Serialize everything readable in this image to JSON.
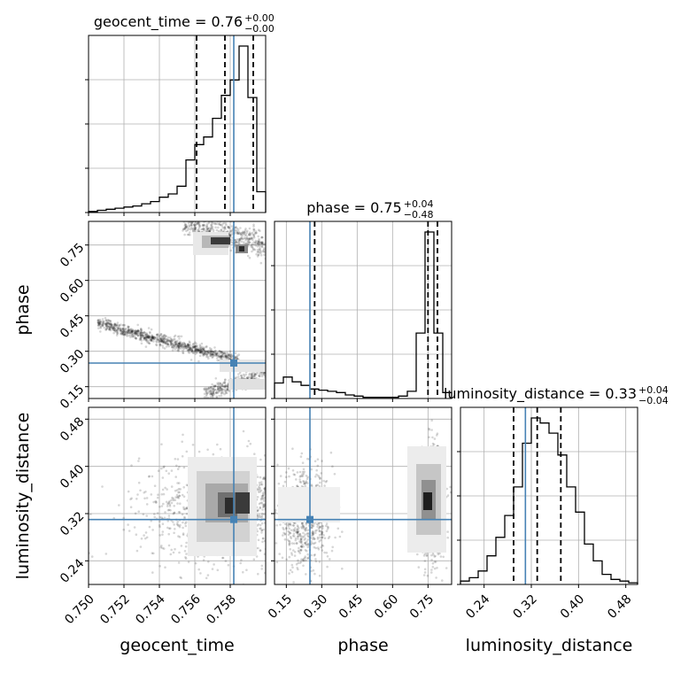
{
  "chart_data": {
    "type": "corner",
    "parameters": [
      "geocent_time",
      "phase",
      "luminosity_distance"
    ],
    "truth_color": "#4682b4",
    "truths": {
      "geocent_time": 0.7582,
      "phase": 0.25,
      "luminosity_distance": 0.31
    },
    "ranges": {
      "geocent_time": [
        0.75,
        0.76
      ],
      "phase": [
        0.1,
        0.85
      ],
      "luminosity_distance": [
        0.2,
        0.5
      ]
    },
    "ticks": {
      "geocent_time": [
        "0.750",
        "0.752",
        "0.754",
        "0.756",
        "0.758"
      ],
      "phase": [
        "0.15",
        "0.30",
        "0.45",
        "0.60",
        "0.75"
      ],
      "luminosity_distance": [
        "0.24",
        "0.32",
        "0.40",
        "0.48"
      ]
    },
    "titles": [
      {
        "param": "geocent_time",
        "label": "geocent_time = 0.76",
        "plus": "+0.00",
        "minus": "−0.00"
      },
      {
        "param": "phase",
        "label": "phase = 0.75",
        "plus": "+0.04",
        "minus": "−0.48"
      },
      {
        "param": "luminosity_distance",
        "label": "luminosity_distance = 0.33",
        "plus": "+0.04",
        "minus": "−0.04"
      }
    ],
    "quantiles": {
      "geocent_time": [
        0.7561,
        0.7577,
        0.7593
      ],
      "phase": [
        0.27,
        0.75,
        0.79
      ],
      "luminosity_distance": [
        0.29,
        0.33,
        0.37
      ]
    },
    "histograms": {
      "geocent_time": {
        "bins": [
          0.75,
          0.7505,
          0.751,
          0.7515,
          0.752,
          0.7525,
          0.753,
          0.7535,
          0.754,
          0.7545,
          0.755,
          0.7555,
          0.756,
          0.7565,
          0.757,
          0.7575,
          0.758,
          0.7585,
          0.759,
          0.7595,
          0.76
        ],
        "counts": [
          1,
          2,
          3,
          4,
          5,
          6,
          8,
          10,
          14,
          17,
          24,
          48,
          62,
          69,
          86,
          107,
          121,
          152,
          105,
          19
        ]
      },
      "phase": {
        "bins": [
          0.1,
          0.1375,
          0.175,
          0.2125,
          0.25,
          0.2875,
          0.325,
          0.3625,
          0.4,
          0.4375,
          0.475,
          0.5125,
          0.55,
          0.5875,
          0.625,
          0.6625,
          0.7,
          0.7375,
          0.775,
          0.8125,
          0.85
        ],
        "counts": [
          13,
          18,
          14,
          11,
          8,
          7,
          6,
          5,
          3,
          2,
          1,
          1,
          1,
          1,
          2,
          6,
          55,
          140,
          55,
          5
        ]
      },
      "luminosity_distance": {
        "bins": [
          0.2,
          0.215,
          0.23,
          0.245,
          0.26,
          0.275,
          0.29,
          0.305,
          0.32,
          0.335,
          0.35,
          0.365,
          0.38,
          0.395,
          0.41,
          0.425,
          0.44,
          0.455,
          0.47,
          0.485,
          0.5
        ],
        "counts": [
          2,
          4,
          8,
          17,
          28,
          41,
          58,
          84,
          99,
          96,
          90,
          77,
          58,
          43,
          24,
          14,
          6,
          3,
          2,
          1
        ]
      }
    },
    "axis_labels": {
      "x": [
        "geocent_time",
        "phase",
        "luminosity_distance"
      ],
      "y": [
        "",
        "phase",
        "luminosity_distance"
      ]
    },
    "grid": true
  }
}
